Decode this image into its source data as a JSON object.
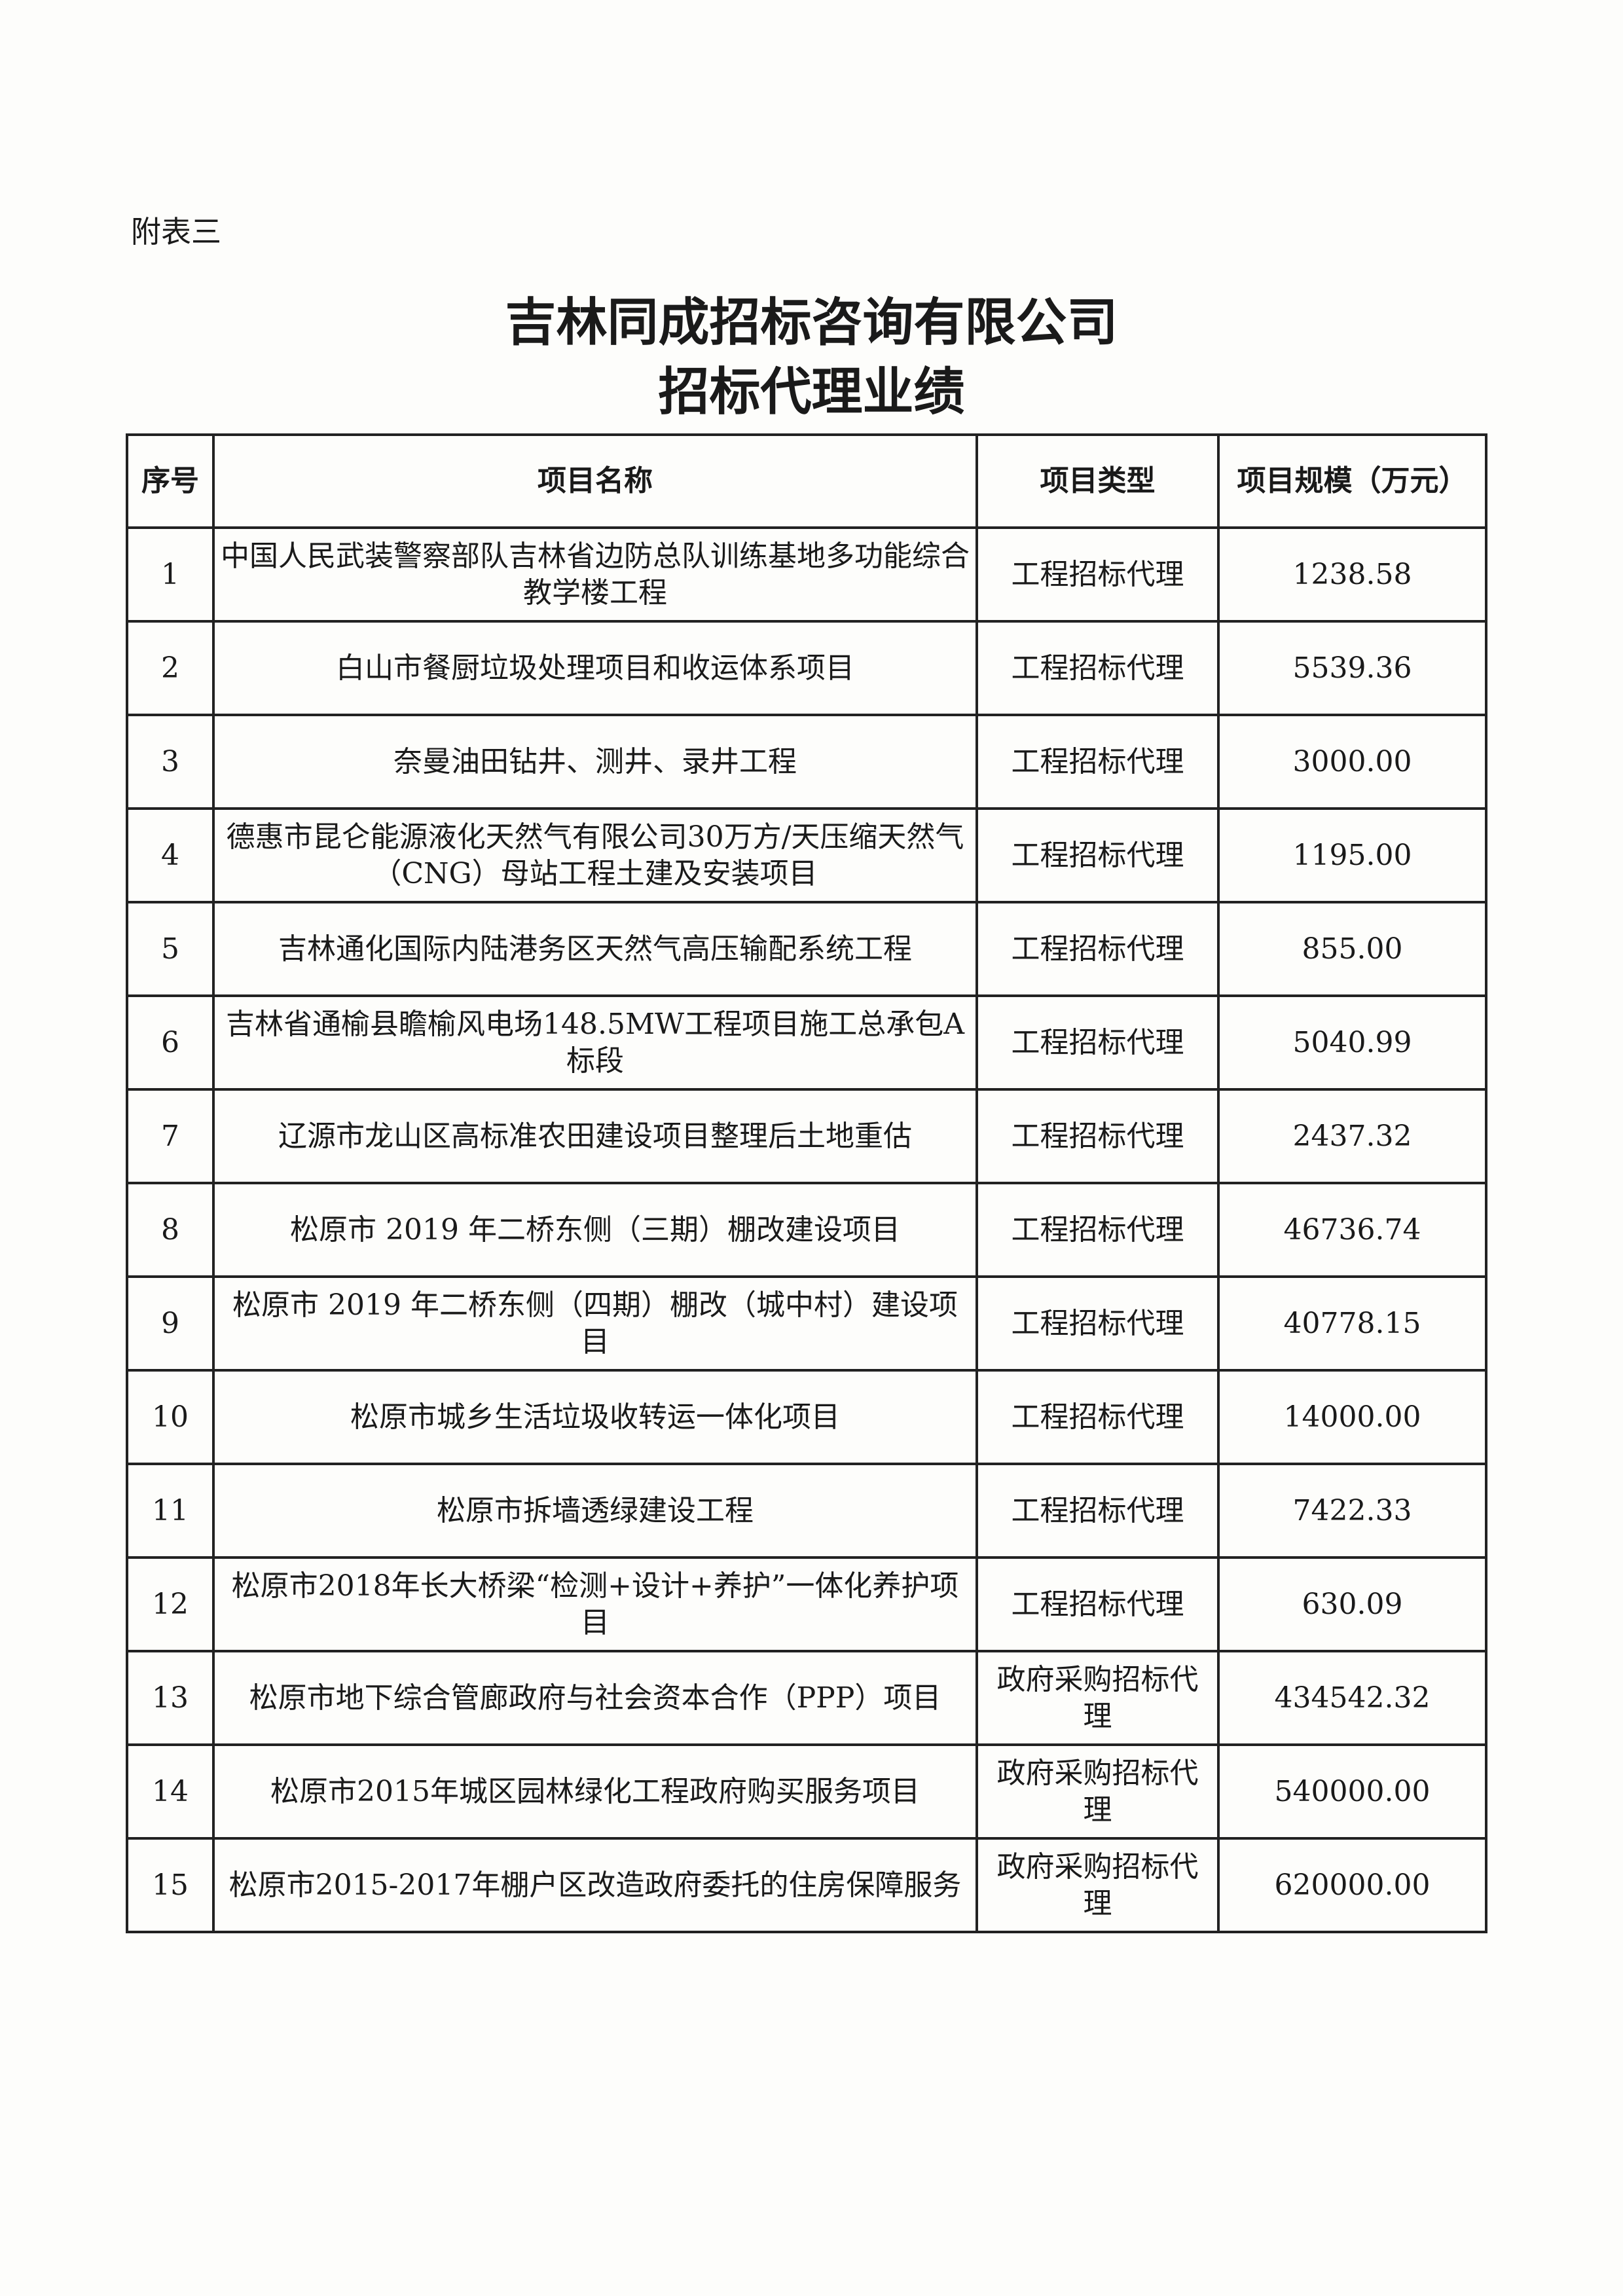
{
  "annex_label": "附表三",
  "title_line1": "吉林同成招标咨询有限公司",
  "title_line2": "招标代理业绩",
  "table": {
    "headers": [
      "序号",
      "项目名称",
      "项目类型",
      "项目规模（万元）"
    ],
    "rows": [
      {
        "no": "1",
        "name": "中国人民武装警察部队吉林省边防总队训练基地多功能综合教学楼工程",
        "type": "工程招标代理",
        "scale": "1238.58"
      },
      {
        "no": "2",
        "name": "白山市餐厨垃圾处理项目和收运体系项目",
        "type": "工程招标代理",
        "scale": "5539.36"
      },
      {
        "no": "3",
        "name": "奈曼油田钻井、测井、录井工程",
        "type": "工程招标代理",
        "scale": "3000.00"
      },
      {
        "no": "4",
        "name": "德惠市昆仑能源液化天然气有限公司30万方/天压缩天然气（CNG）母站工程土建及安装项目",
        "type": "工程招标代理",
        "scale": "1195.00"
      },
      {
        "no": "5",
        "name": "吉林通化国际内陆港务区天然气高压输配系统工程",
        "type": "工程招标代理",
        "scale": "855.00"
      },
      {
        "no": "6",
        "name": "吉林省通榆县瞻榆风电场148.5MW工程项目施工总承包A标段",
        "type": "工程招标代理",
        "scale": "5040.99"
      },
      {
        "no": "7",
        "name": "辽源市龙山区高标准农田建设项目整理后土地重估",
        "type": "工程招标代理",
        "scale": "2437.32"
      },
      {
        "no": "8",
        "name": "松原市 2019 年二桥东侧（三期）棚改建设项目",
        "type": "工程招标代理",
        "scale": "46736.74"
      },
      {
        "no": "9",
        "name": "松原市 2019 年二桥东侧（四期）棚改（城中村）建设项目",
        "type": "工程招标代理",
        "scale": "40778.15"
      },
      {
        "no": "10",
        "name": "松原市城乡生活垃圾收转运一体化项目",
        "type": "工程招标代理",
        "scale": "14000.00"
      },
      {
        "no": "11",
        "name": "松原市拆墙透绿建设工程",
        "type": "工程招标代理",
        "scale": "7422.33"
      },
      {
        "no": "12",
        "name": "松原市2018年长大桥梁“检测+设计+养护”一体化养护项目",
        "type": "工程招标代理",
        "scale": "630.09"
      },
      {
        "no": "13",
        "name": "松原市地下综合管廊政府与社会资本合作（PPP）项目",
        "type": "政府采购招标代理",
        "scale": "434542.32"
      },
      {
        "no": "14",
        "name": "松原市2015年城区园林绿化工程政府购买服务项目",
        "type": "政府采购招标代理",
        "scale": "540000.00"
      },
      {
        "no": "15",
        "name": "松原市2015-2017年棚户区改造政府委托的住房保障服务",
        "type": "政府采购招标代理",
        "scale": "620000.00"
      }
    ]
  }
}
